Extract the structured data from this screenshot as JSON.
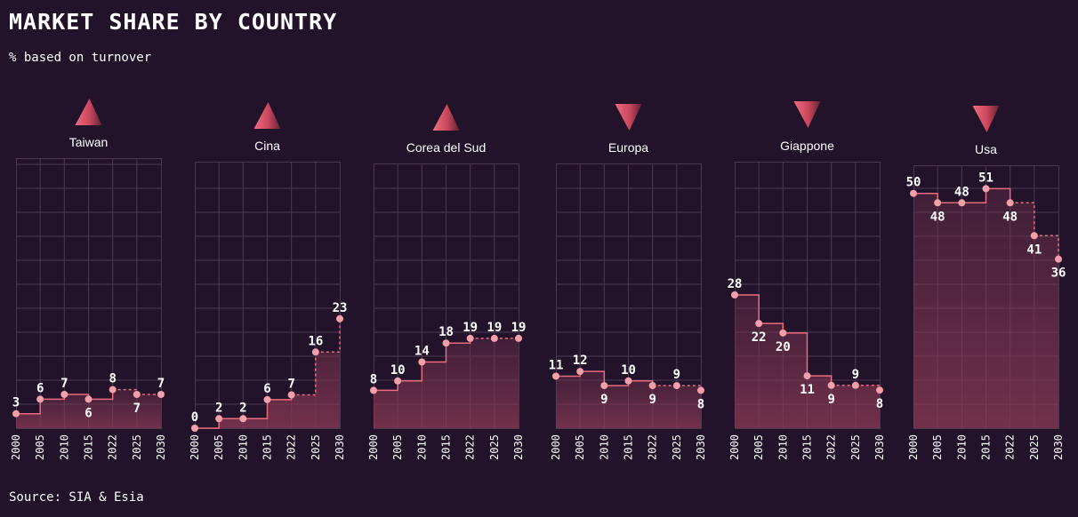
{
  "title": "MARKET SHARE BY COUNTRY",
  "subtitle": "% based on turnover",
  "source": "Source: SIA & Esia",
  "colors": {
    "background": "#22132b",
    "grid": "#4a3850",
    "line": "#ea6b7e",
    "point": "#f4a0aa",
    "text": "#ffffff"
  },
  "chart_data": {
    "type": "line",
    "step": true,
    "title": "MARKET SHARE BY COUNTRY",
    "subtitle": "% based on turnover",
    "ylim": [
      0,
      56
    ],
    "x": [
      "2000",
      "2005",
      "2010",
      "2015",
      "2022",
      "2025",
      "2030"
    ],
    "projection_starts_after": "2022",
    "panels": [
      {
        "name": "Taiwan",
        "trend": "up",
        "values": [
          3,
          6,
          7,
          6,
          8,
          7,
          7
        ],
        "labels": [
          "3",
          "6",
          "7",
          "6",
          "8",
          "7",
          "7"
        ]
      },
      {
        "name": "Cina",
        "trend": "up",
        "values": [
          0,
          2,
          2,
          6,
          7,
          16,
          23
        ],
        "labels": [
          "0",
          "2",
          "2",
          "6",
          "7",
          "16",
          "23"
        ]
      },
      {
        "name": "Corea del Sud",
        "trend": "up",
        "values": [
          8,
          10,
          14,
          18,
          19,
          19,
          19
        ],
        "labels": [
          "8",
          "10",
          "14",
          "18",
          "19",
          "19",
          "19"
        ]
      },
      {
        "name": "Europa",
        "trend": "down",
        "values": [
          11,
          12,
          9,
          10,
          9,
          9,
          8
        ],
        "labels": [
          "11",
          "12",
          "9",
          "10",
          "9",
          "9",
          "8"
        ]
      },
      {
        "name": "Giappone",
        "trend": "down",
        "values": [
          28,
          22,
          20,
          11,
          9,
          9,
          8
        ],
        "labels": [
          "28",
          "22",
          "20",
          "11",
          "9",
          "9",
          "8"
        ]
      },
      {
        "name": "Usa",
        "trend": "down",
        "values": [
          50,
          48,
          48,
          51,
          48,
          41,
          36
        ],
        "labels": [
          "50",
          "48",
          "48",
          "51",
          "48",
          "41",
          "36"
        ]
      }
    ]
  }
}
